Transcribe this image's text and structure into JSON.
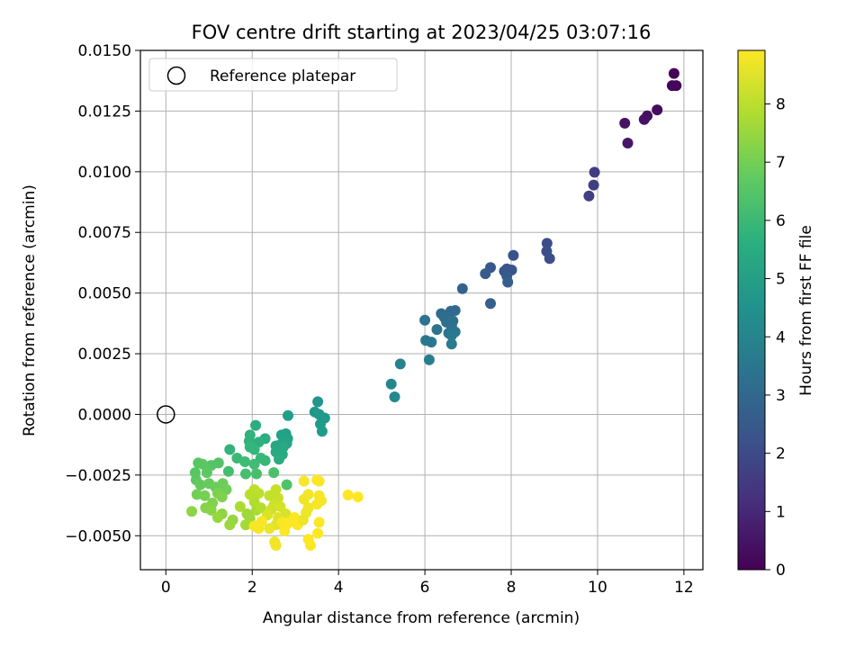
{
  "chart_data": {
    "type": "scatter",
    "title": "FOV centre drift starting at 2023/04/25 03:07:16",
    "xlabel": "Angular distance from reference (arcmin)",
    "ylabel": "Rotation from reference (arcmin)",
    "xlim": [
      -0.59,
      12.44
    ],
    "ylim": [
      -0.0064,
      0.015
    ],
    "xticks": [
      0,
      2,
      4,
      6,
      8,
      10,
      12
    ],
    "xtick_labels": [
      "0",
      "2",
      "4",
      "6",
      "8",
      "10",
      "12"
    ],
    "yticks": [
      -0.005,
      -0.0025,
      0.0,
      0.0025,
      0.005,
      0.0075,
      0.01,
      0.0125,
      0.015
    ],
    "ytick_labels": [
      "−0.0050",
      "−0.0025",
      "0.0000",
      "0.0025",
      "0.0050",
      "0.0075",
      "0.0100",
      "0.0125",
      "0.0150"
    ],
    "grid": true,
    "legend": {
      "position": "top-left",
      "entries": [
        {
          "label": "Reference platepar",
          "marker": "open-circle"
        }
      ]
    },
    "reference_point": {
      "x": 0.0,
      "y": 0.0
    },
    "colorbar": {
      "label": "Hours from first FF file",
      "colormap": "viridis",
      "range": [
        0,
        8.92
      ],
      "ticks": [
        0,
        1,
        2,
        3,
        4,
        5,
        6,
        7,
        8
      ],
      "tick_labels": [
        "0",
        "1",
        "2",
        "3",
        "4",
        "5",
        "6",
        "7",
        "8"
      ]
    },
    "series": [
      {
        "values_format": "[x, y, hours]",
        "points": [
          [
            11.77,
            0.01405,
            0.05
          ],
          [
            11.73,
            0.01355,
            0.1
          ],
          [
            11.82,
            0.01355,
            0.15
          ],
          [
            11.38,
            0.01255,
            0.25
          ],
          [
            11.15,
            0.0123,
            0.35
          ],
          [
            11.08,
            0.01215,
            0.4
          ],
          [
            10.63,
            0.012,
            0.45
          ],
          [
            10.7,
            0.01118,
            0.55
          ],
          [
            9.93,
            0.00998,
            1.6
          ],
          [
            9.91,
            0.00945,
            1.65
          ],
          [
            9.8,
            0.009,
            1.7
          ],
          [
            8.83,
            0.00705,
            2.0
          ],
          [
            8.82,
            0.00672,
            2.1
          ],
          [
            8.89,
            0.00642,
            2.15
          ],
          [
            8.05,
            0.00655,
            2.25
          ],
          [
            7.9,
            0.006,
            2.3
          ],
          [
            8.01,
            0.00595,
            2.35
          ],
          [
            7.84,
            0.0059,
            2.4
          ],
          [
            7.52,
            0.00605,
            2.45
          ],
          [
            7.9,
            0.0057,
            2.5
          ],
          [
            7.4,
            0.0058,
            2.55
          ],
          [
            7.92,
            0.00545,
            2.6
          ],
          [
            7.52,
            0.00457,
            2.7
          ],
          [
            6.87,
            0.00518,
            2.8
          ],
          [
            6.7,
            0.00428,
            3.0
          ],
          [
            6.6,
            0.00425,
            3.05
          ],
          [
            6.38,
            0.00415,
            3.1
          ],
          [
            6.45,
            0.004,
            3.15
          ],
          [
            6.65,
            0.00385,
            3.2
          ],
          [
            6.5,
            0.0038,
            3.25
          ],
          [
            6.62,
            0.00365,
            3.3
          ],
          [
            6.0,
            0.00388,
            3.35
          ],
          [
            6.28,
            0.0035,
            3.4
          ],
          [
            6.55,
            0.00335,
            3.45
          ],
          [
            6.7,
            0.0034,
            3.5
          ],
          [
            6.02,
            0.00305,
            3.55
          ],
          [
            6.15,
            0.00298,
            3.6
          ],
          [
            6.62,
            0.00325,
            3.65
          ],
          [
            6.62,
            0.0029,
            3.7
          ],
          [
            6.1,
            0.00225,
            3.8
          ],
          [
            5.43,
            0.00208,
            4.0
          ],
          [
            5.22,
            0.00125,
            4.1
          ],
          [
            5.3,
            0.00072,
            4.2
          ],
          [
            3.52,
            0.00052,
            4.6
          ],
          [
            3.45,
            0.0001,
            4.7
          ],
          [
            3.55,
            0.0,
            4.75
          ],
          [
            3.68,
            -0.00015,
            4.8
          ],
          [
            3.58,
            -0.0004,
            4.85
          ],
          [
            3.62,
            -0.0007,
            4.9
          ],
          [
            2.83,
            -5e-05,
            5.0
          ],
          [
            2.78,
            -0.0008,
            5.05
          ],
          [
            2.68,
            -0.00085,
            5.1
          ],
          [
            2.82,
            -0.001,
            5.15
          ],
          [
            2.65,
            -0.00125,
            5.2
          ],
          [
            2.8,
            -0.0012,
            5.25
          ],
          [
            2.55,
            -0.0013,
            5.3
          ],
          [
            2.72,
            -0.00135,
            5.35
          ],
          [
            2.55,
            -0.00155,
            5.4
          ],
          [
            2.7,
            -0.00165,
            5.45
          ],
          [
            2.62,
            -0.00185,
            5.5
          ],
          [
            2.08,
            -0.00045,
            5.55
          ],
          [
            2.3,
            -0.001,
            5.6
          ],
          [
            2.15,
            -0.00115,
            5.65
          ],
          [
            1.95,
            -0.00085,
            5.7
          ],
          [
            1.93,
            -0.0011,
            5.75
          ],
          [
            1.48,
            -0.00145,
            5.8
          ],
          [
            1.95,
            -0.00135,
            5.85
          ],
          [
            2.05,
            -0.00145,
            5.9
          ],
          [
            2.3,
            -0.0019,
            5.95
          ],
          [
            2.2,
            -0.0018,
            6.0
          ],
          [
            1.65,
            -0.0018,
            6.05
          ],
          [
            1.83,
            -0.00195,
            6.1
          ],
          [
            2.05,
            -0.00205,
            6.15
          ],
          [
            1.45,
            -0.00235,
            6.2
          ],
          [
            1.85,
            -0.00245,
            6.25
          ],
          [
            2.1,
            -0.00245,
            6.3
          ],
          [
            2.5,
            -0.0024,
            6.35
          ],
          [
            2.8,
            -0.0029,
            6.4
          ],
          [
            1.22,
            -0.002,
            6.45
          ],
          [
            1.05,
            -0.0021,
            6.5
          ],
          [
            0.75,
            -0.002,
            6.55
          ],
          [
            0.85,
            -0.00205,
            6.6
          ],
          [
            0.95,
            -0.0024,
            6.65
          ],
          [
            0.7,
            -0.0027,
            6.7
          ],
          [
            0.8,
            -0.0029,
            6.75
          ],
          [
            1.0,
            -0.00285,
            6.8
          ],
          [
            1.15,
            -0.003,
            6.85
          ],
          [
            1.32,
            -0.00285,
            6.9
          ],
          [
            1.4,
            -0.0031,
            6.95
          ],
          [
            0.72,
            -0.0033,
            7.0
          ],
          [
            0.9,
            -0.00335,
            7.05
          ],
          [
            1.2,
            -0.00325,
            7.1
          ],
          [
            1.3,
            -0.0034,
            7.15
          ],
          [
            1.08,
            -0.00365,
            7.2
          ],
          [
            0.92,
            -0.00385,
            7.25
          ],
          [
            1.05,
            -0.00395,
            7.3
          ],
          [
            0.6,
            -0.004,
            7.35
          ],
          [
            1.3,
            -0.0041,
            7.4
          ],
          [
            1.55,
            -0.00435,
            7.45
          ],
          [
            1.2,
            -0.00425,
            7.5
          ],
          [
            1.48,
            -0.00455,
            7.55
          ],
          [
            1.88,
            -0.0041,
            7.6
          ],
          [
            1.95,
            -0.0043,
            7.65
          ],
          [
            1.85,
            -0.00455,
            7.7
          ],
          [
            2.1,
            -0.00395,
            7.75
          ],
          [
            1.72,
            -0.0038,
            7.8
          ],
          [
            2.05,
            -0.0036,
            7.85
          ],
          [
            2.2,
            -0.00385,
            7.9
          ],
          [
            1.95,
            -0.0033,
            7.95
          ],
          [
            2.15,
            -0.00325,
            8.0
          ],
          [
            2.05,
            -0.0031,
            8.05
          ],
          [
            2.4,
            -0.00335,
            8.1
          ],
          [
            2.55,
            -0.0031,
            8.15
          ],
          [
            2.6,
            -0.00345,
            8.2
          ],
          [
            2.5,
            -0.00375,
            8.25
          ],
          [
            2.45,
            -0.0039,
            8.3
          ],
          [
            2.65,
            -0.0038,
            8.35
          ],
          [
            2.78,
            -0.0041,
            8.4
          ],
          [
            2.35,
            -0.00415,
            8.45
          ],
          [
            2.6,
            -0.00425,
            8.5
          ],
          [
            2.55,
            -0.00455,
            8.55
          ],
          [
            2.85,
            -0.0044,
            8.6
          ],
          [
            2.4,
            -0.0047,
            8.65
          ],
          [
            2.52,
            -0.00525,
            8.7
          ],
          [
            2.55,
            -0.0054,
            8.75
          ],
          [
            2.15,
            -0.0047,
            8.8
          ],
          [
            2.05,
            -0.0046,
            8.82
          ],
          [
            2.22,
            -0.0044,
            8.84
          ],
          [
            2.7,
            -0.00445,
            8.86
          ],
          [
            2.75,
            -0.0048,
            8.88
          ],
          [
            2.82,
            -0.0045,
            8.9
          ],
          [
            2.98,
            -0.00425,
            8.91
          ],
          [
            3.05,
            -0.00455,
            8.92
          ],
          [
            3.18,
            -0.00435,
            8.7
          ],
          [
            3.25,
            -0.00405,
            8.72
          ],
          [
            3.3,
            -0.00385,
            8.74
          ],
          [
            3.2,
            -0.0035,
            8.76
          ],
          [
            3.3,
            -0.0033,
            8.78
          ],
          [
            3.55,
            -0.00335,
            8.8
          ],
          [
            3.6,
            -0.00355,
            8.82
          ],
          [
            3.5,
            -0.0037,
            8.84
          ],
          [
            3.2,
            -0.00275,
            8.86
          ],
          [
            3.5,
            -0.0027,
            8.88
          ],
          [
            3.55,
            -0.00275,
            8.9
          ],
          [
            3.55,
            -0.00445,
            8.91
          ],
          [
            3.52,
            -0.0049,
            8.92
          ],
          [
            3.3,
            -0.00515,
            8.9
          ],
          [
            3.35,
            -0.0054,
            8.92
          ],
          [
            4.22,
            -0.00332,
            8.92
          ],
          [
            4.45,
            -0.0034,
            8.92
          ],
          [
            0.68,
            -0.0024,
            6.58
          ]
        ]
      }
    ]
  }
}
